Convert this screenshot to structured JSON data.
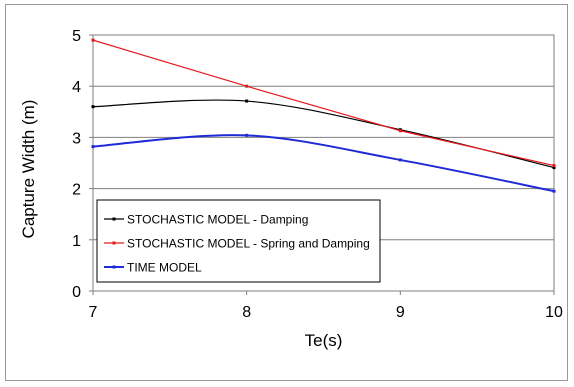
{
  "chart_data": {
    "type": "line",
    "title": "",
    "xlabel": "Te(s)",
    "ylabel": "Capture Width (m)",
    "xlim": [
      7,
      10
    ],
    "ylim": [
      0,
      5
    ],
    "xticks": [
      7,
      8,
      9,
      10
    ],
    "yticks": [
      0,
      1,
      2,
      3,
      4,
      5
    ],
    "grid": "horizontal",
    "legend": "lower-left",
    "series": [
      {
        "name": "STOCHASTIC MODEL - Damping",
        "color": "#000000",
        "x": [
          7,
          8,
          9,
          10
        ],
        "y": [
          3.6,
          3.71,
          3.15,
          2.41
        ]
      },
      {
        "name": "STOCHASTIC MODEL - Spring and Damping",
        "color": "#e8191c",
        "x": [
          7,
          8,
          9,
          10
        ],
        "y": [
          4.9,
          4.0,
          3.13,
          2.45
        ]
      },
      {
        "name": "TIME MODEL",
        "color": "#1f2bd6",
        "x": [
          7,
          8,
          9,
          10
        ],
        "y": [
          2.82,
          3.04,
          2.56,
          1.95
        ]
      }
    ]
  }
}
